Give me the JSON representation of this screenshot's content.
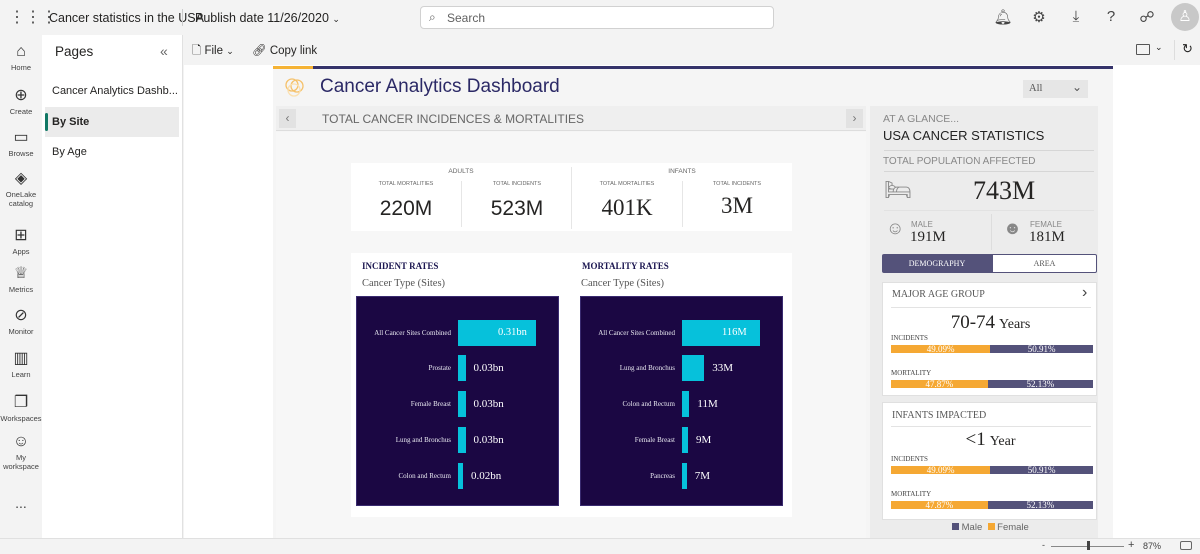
{
  "topbar": {
    "report_name": "Cancer statistics in the USA",
    "publish_date": "Publish date 11/26/2020",
    "search_placeholder": "Search",
    "icons": [
      "apps-grid-icon",
      "bell-icon",
      "gear-icon",
      "download-icon",
      "help-icon",
      "share-people-icon",
      "avatar-icon"
    ]
  },
  "rail": [
    {
      "label": "Home",
      "icon": "⌂"
    },
    {
      "label": "Create",
      "icon": "⊕"
    },
    {
      "label": "Browse",
      "icon": "▭"
    },
    {
      "label": "OneLake catalog",
      "icon": "◈"
    },
    {
      "label": "Apps",
      "icon": "⊞"
    },
    {
      "label": "Metrics",
      "icon": "♕"
    },
    {
      "label": "Monitor",
      "icon": "⊘"
    },
    {
      "label": "Learn",
      "icon": "▥"
    },
    {
      "label": "Workspaces",
      "icon": "❐"
    },
    {
      "label": "My workspace",
      "icon": "☺"
    },
    {
      "label": "...",
      "icon": ""
    }
  ],
  "pages": {
    "title": "Pages",
    "items": [
      {
        "label": "Cancer Analytics Dashb..."
      },
      {
        "label": "By Site",
        "selected": true
      },
      {
        "label": "By Age"
      }
    ]
  },
  "toolbar": {
    "file": "File",
    "copy_link": "Copy link"
  },
  "report": {
    "title": "Cancer Analytics Dashboard",
    "filter": "All",
    "section_title": "TOTAL CANCER INCIDENCES & MORTALITIES",
    "kpis": [
      {
        "group": "ADULTS",
        "items": [
          {
            "label": "TOTAL MORTALITIES",
            "value": "220M"
          },
          {
            "label": "TOTAL INCIDENTS",
            "value": "523M"
          }
        ]
      },
      {
        "group": "INFANTS",
        "items": [
          {
            "label": "TOTAL MORTALITIES",
            "value": "401K"
          },
          {
            "label": "TOTAL INCIDENTS",
            "value": "3M"
          }
        ]
      }
    ],
    "colors": {
      "navy": "#35336a",
      "orange": "#f5b335",
      "bar": "#06c1db",
      "chart_bg": "#1b0743",
      "male": "#54527a",
      "female": "#f5a833"
    }
  },
  "chart_data": [
    {
      "type": "bar",
      "orientation": "horizontal",
      "title": "INCIDENT RATES",
      "subtitle": "Cancer Type (Sites)",
      "categories": [
        "All Cancer Sites Combined",
        "Prostate",
        "Female Breast",
        "Lung and Bronchus",
        "Colon and Rectum"
      ],
      "values": [
        0.31,
        0.03,
        0.03,
        0.03,
        0.02
      ],
      "labels": [
        "0.31bn",
        "0.03bn",
        "0.03bn",
        "0.03bn",
        "0.02bn"
      ],
      "unit": "bn"
    },
    {
      "type": "bar",
      "orientation": "horizontal",
      "title": "MORTALITY RATES",
      "subtitle": "Cancer Type (Sites)",
      "categories": [
        "All Cancer Sites Combined",
        "Lung and Bronchus",
        "Colon and Rectum",
        "Female Breast",
        "Pancreas"
      ],
      "values": [
        116,
        33,
        11,
        9,
        7
      ],
      "labels": [
        "116M",
        "33M",
        "11M",
        "9M",
        "7M"
      ],
      "unit": "M"
    }
  ],
  "side": {
    "kicker": "AT A GLANCE...",
    "title": "USA CANCER STATISTICS",
    "pop_label": "TOTAL POPULATION AFFECTED",
    "pop_value": "743M",
    "male_label": "MALE",
    "male_value": "191M",
    "female_label": "FEMALE",
    "female_value": "181M",
    "tabs": [
      {
        "label": "DEMOGRAPHY",
        "active": true
      },
      {
        "label": "AREA"
      }
    ],
    "age": {
      "title": "MAJOR AGE GROUP",
      "value": "70-74",
      "unit": "Years",
      "rows": [
        {
          "label": "INCIDENTS",
          "female": "49.09%",
          "male": "50.91%",
          "female_pct": 49.09
        },
        {
          "label": "MORTALITY",
          "female": "47.87%",
          "male": "52.13%",
          "female_pct": 47.87
        }
      ]
    },
    "infants": {
      "title": "INFANTS IMPACTED",
      "value": "<1",
      "unit": "Year",
      "rows": [
        {
          "label": "INCIDENTS",
          "female": "49.09%",
          "male": "50.91%",
          "female_pct": 49.09
        },
        {
          "label": "MORTALITY",
          "female": "47.87%",
          "male": "52.13%",
          "female_pct": 47.87
        }
      ]
    },
    "legend": {
      "male": "Male",
      "female": "Female"
    }
  },
  "status": {
    "zoom": "87%",
    "zoom_level": 87
  }
}
